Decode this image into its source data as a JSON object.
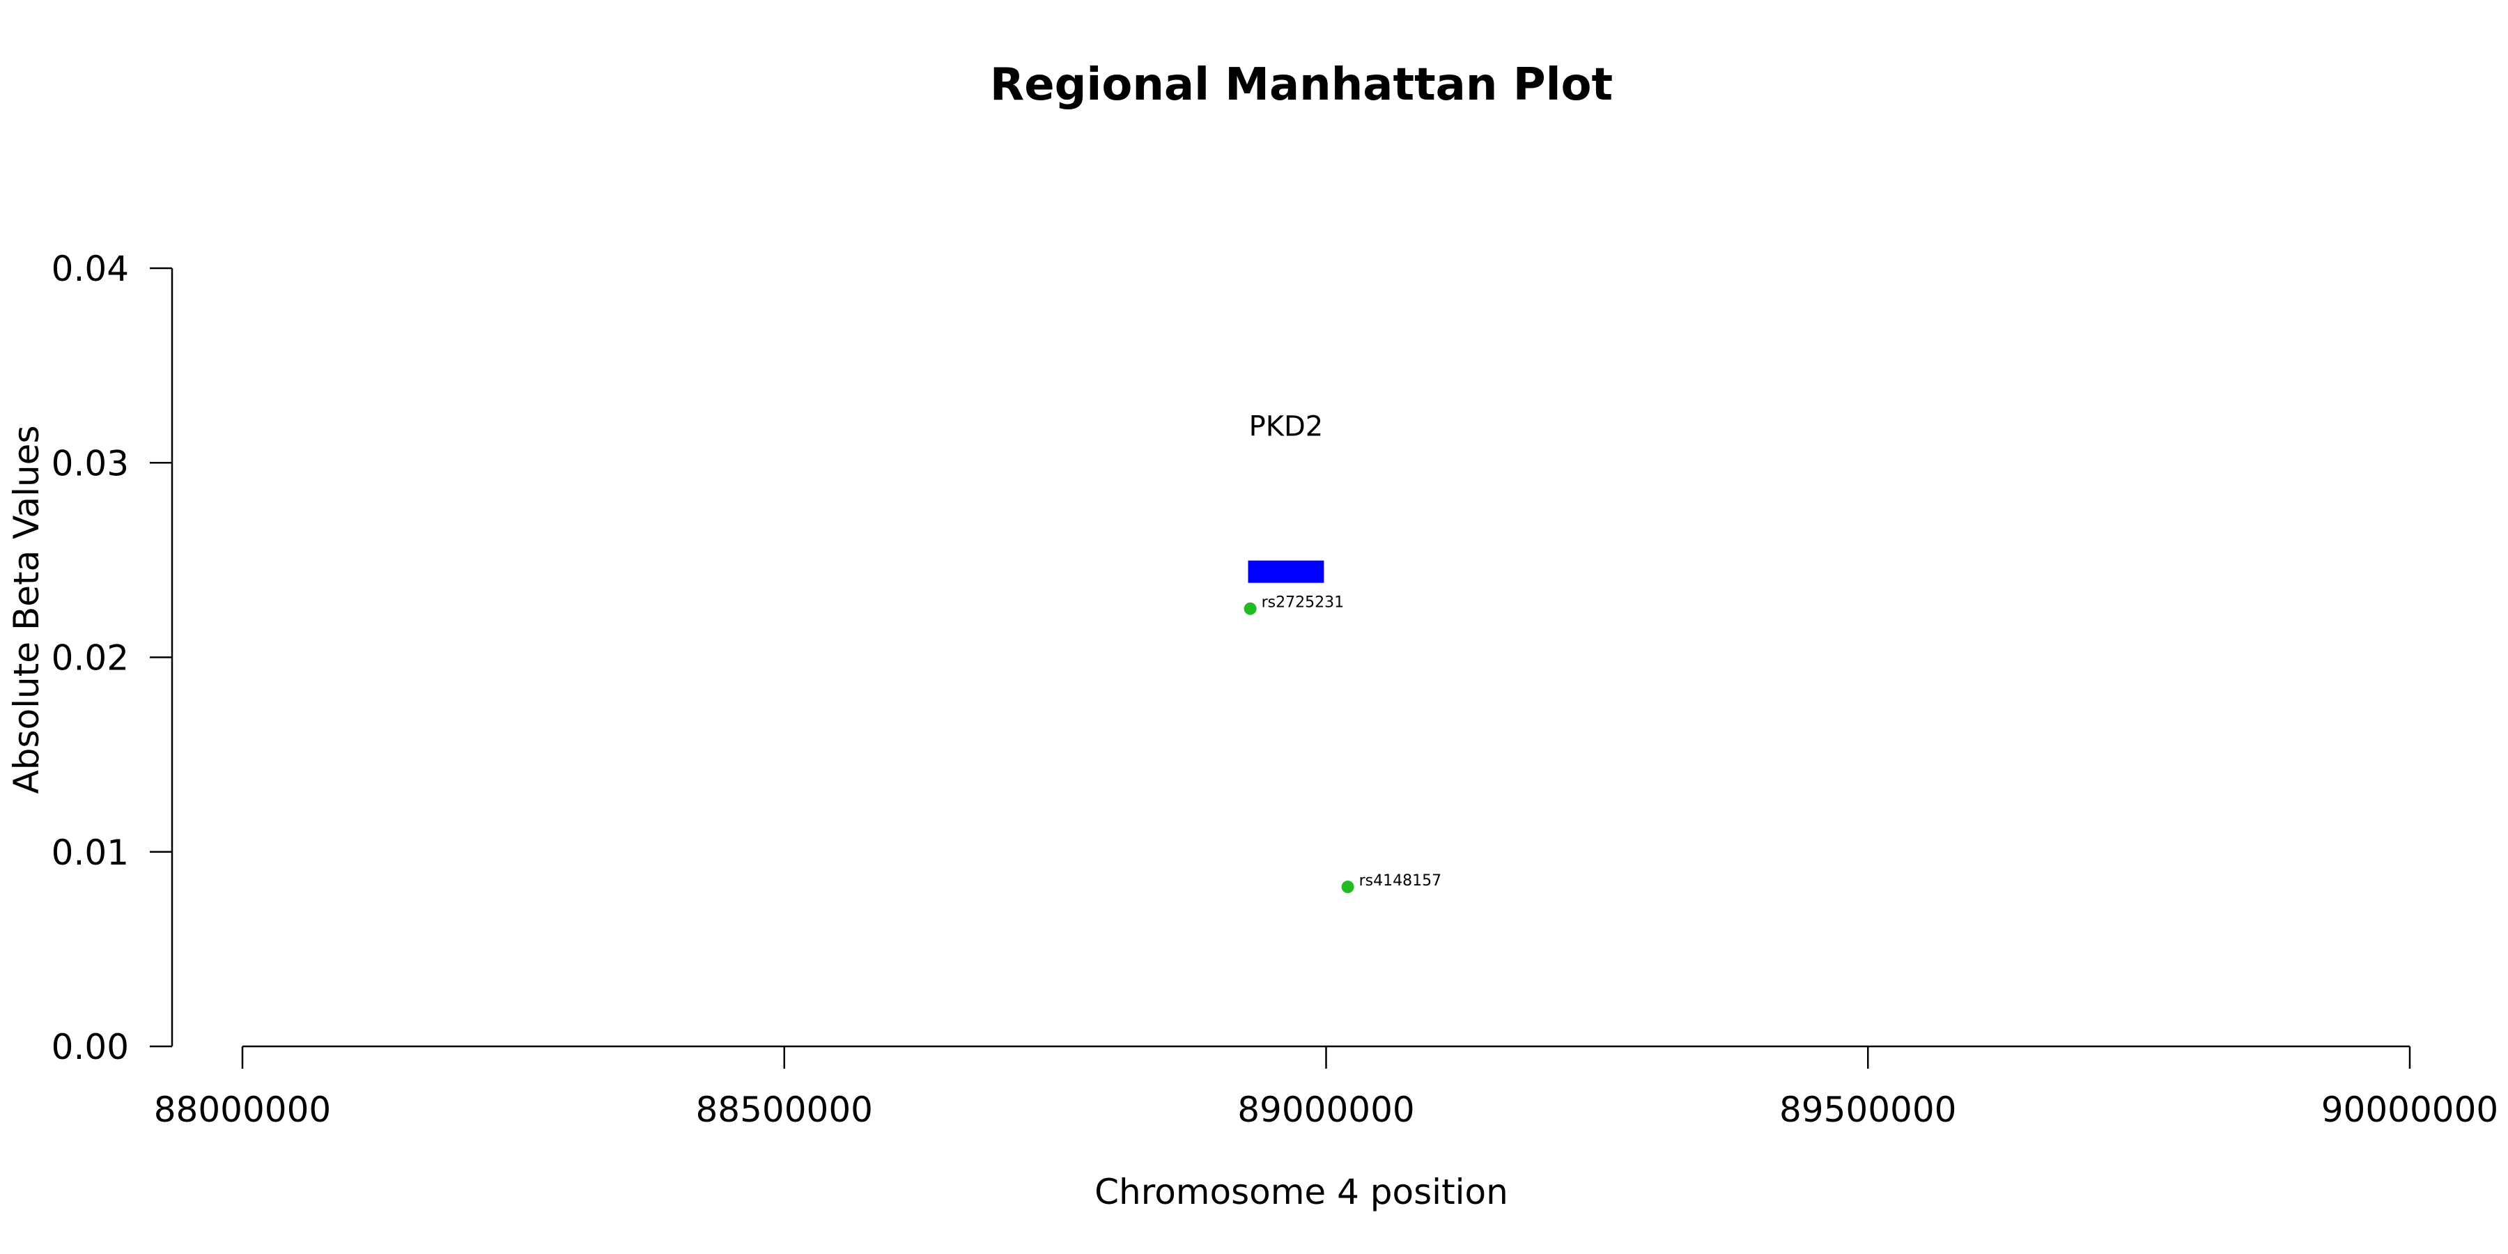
{
  "chart_data": {
    "type": "scatter",
    "title": "Regional Manhattan Plot",
    "xlabel": "Chromosome 4 position",
    "ylabel": "Absolute Beta Values",
    "xlim": [
      88000000,
      90000000
    ],
    "ylim": [
      0,
      0.04
    ],
    "x_ticks": [
      88000000,
      88500000,
      89000000,
      89500000,
      90000000
    ],
    "x_tick_labels": [
      "88000000",
      "88500000",
      "89000000",
      "89500000",
      "90000000"
    ],
    "y_ticks": [
      0,
      0.01,
      0.02,
      0.03,
      0.04
    ],
    "y_tick_labels": [
      "0.00",
      "0.01",
      "0.02",
      "0.03",
      "0.04"
    ],
    "points": [
      {
        "label": "rs2725231",
        "x": 88930000,
        "y": 0.0225
      },
      {
        "label": "rs4148157",
        "x": 89020000,
        "y": 0.0082
      }
    ],
    "point_color": "#22bb22",
    "genes": [
      {
        "name": "PKD2",
        "start": 88928000,
        "end": 88998000,
        "y": 0.0244
      }
    ],
    "gene_color": "#0000ff",
    "grid": false
  }
}
